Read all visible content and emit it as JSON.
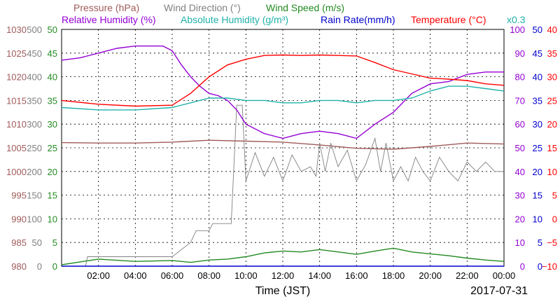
{
  "chart_data": {
    "type": "line",
    "date": "2017-07-31",
    "xlabel": "Time (JST)",
    "x_range": [
      "00:00",
      "24:00"
    ],
    "x_ticks": [
      "02:00",
      "04:00",
      "06:00",
      "08:00",
      "10:00",
      "12:00",
      "14:00",
      "16:00",
      "18:00",
      "20:00",
      "22:00",
      "00:00"
    ],
    "grid": true,
    "legend": {
      "row1": [
        {
          "label": "Pressure (hPa)",
          "color": "#a05a5a"
        },
        {
          "label": "Wind Direction (°)",
          "color": "#808080"
        },
        {
          "label": "Wind Speed (m/s)",
          "color": "#228B22"
        }
      ],
      "row2": [
        {
          "label": "Relative Humidity (%)",
          "color": "#9400d3"
        },
        {
          "label": "Absolute Humidity (g/m³)",
          "color": "#20b2aa"
        },
        {
          "label": "Rain Rate(mm/h)",
          "color": "#0000cd"
        },
        {
          "label": "Temperature (°C)",
          "color": "#ff0000"
        }
      ],
      "rain_multiplier": "x0.3"
    },
    "axes": {
      "pressure": {
        "color": "#a05a5a",
        "range": [
          980,
          1030
        ],
        "ticks": [
          "1030",
          "1025",
          "1020",
          "1015",
          "1010",
          "1005",
          "1000",
          "995",
          "990",
          "985",
          "980"
        ]
      },
      "wind_direction": {
        "color": "#808080",
        "range": [
          0,
          500
        ],
        "ticks": [
          "500",
          "450",
          "400",
          "350",
          "300",
          "250",
          "200",
          "150",
          "100",
          "50",
          "0"
        ]
      },
      "wind_speed": {
        "color": "#228B22",
        "range": [
          0,
          50
        ],
        "ticks": [
          "50",
          "45",
          "40",
          "35",
          "30",
          "25",
          "20",
          "15",
          "10",
          "5",
          "0"
        ]
      },
      "humidity": {
        "color": "#9400d3",
        "range": [
          0,
          100
        ],
        "ticks": [
          "100",
          "90",
          "80",
          "70",
          "60",
          "50",
          "40",
          "30",
          "20",
          "10",
          "0"
        ]
      },
      "rain": {
        "color": "#0000cd",
        "range": [
          0,
          50
        ],
        "ticks": [
          "50",
          "45",
          "40",
          "35",
          "30",
          "25",
          "20",
          "15",
          "10",
          "5",
          "0"
        ]
      },
      "temperature": {
        "color": "#ff0000",
        "range": [
          -10,
          40
        ],
        "ticks": [
          "40",
          "35",
          "30",
          "25",
          "20",
          "15",
          "10",
          "5",
          "0",
          "−5",
          "−10"
        ]
      }
    },
    "series": [
      {
        "name": "Pressure (hPa)",
        "axis": "pressure",
        "color": "#a05a5a",
        "x": [
          0,
          2,
          4,
          6,
          8,
          10,
          12,
          14,
          16,
          18,
          20,
          22,
          24
        ],
        "y": [
          1006.1,
          1006.0,
          1006.0,
          1006.2,
          1006.6,
          1006.4,
          1006.2,
          1005.6,
          1004.9,
          1004.7,
          1005.3,
          1006.0,
          1005.8
        ]
      },
      {
        "name": "Wind Direction (°)",
        "axis": "wind_direction",
        "color": "#808080",
        "x": [
          1.3,
          1.4,
          5.8,
          6.0,
          7.0,
          7.3,
          8.0,
          8.2,
          9.2,
          9.5,
          9.8,
          10.0,
          10.5,
          11.0,
          11.5,
          12.0,
          12.5,
          13.0,
          13.5,
          13.8,
          14.0,
          14.3,
          14.6,
          15.0,
          15.5,
          16.0,
          16.5,
          17.0,
          17.3,
          17.6,
          18.0,
          18.4,
          18.8,
          19.2,
          19.6,
          20.0,
          20.5,
          21.0,
          21.5,
          22.0,
          22.5,
          23.0,
          23.5,
          24.0
        ],
        "y": [
          0,
          20,
          20,
          20,
          50,
          75,
          75,
          90,
          90,
          340,
          340,
          180,
          240,
          190,
          230,
          180,
          235,
          200,
          210,
          190,
          260,
          200,
          260,
          210,
          245,
          180,
          215,
          270,
          200,
          260,
          180,
          210,
          180,
          230,
          200,
          180,
          230,
          200,
          180,
          220,
          200,
          220,
          200,
          200
        ]
      },
      {
        "name": "Wind Speed (m/s)",
        "axis": "wind_speed",
        "color": "#228B22",
        "x": [
          0,
          2,
          4,
          6,
          7,
          8,
          9,
          10,
          11,
          12,
          13,
          14,
          15,
          16,
          17,
          18,
          19,
          20,
          21,
          22,
          23,
          24
        ],
        "y": [
          0.3,
          1.5,
          1.0,
          1.2,
          0.8,
          1.3,
          1.5,
          2.0,
          2.8,
          3.2,
          3.0,
          3.5,
          3.0,
          2.5,
          3.2,
          3.8,
          3.0,
          2.6,
          2.2,
          1.7,
          1.3,
          1.0
        ]
      },
      {
        "name": "Relative Humidity (%)",
        "axis": "humidity",
        "color": "#9400d3",
        "x": [
          0,
          1,
          2,
          3,
          4,
          5,
          5.5,
          6,
          6.5,
          7,
          7.5,
          8,
          8.5,
          9,
          9.5,
          10,
          11,
          12,
          13,
          14,
          15,
          16,
          17,
          18,
          19,
          20,
          21,
          22,
          23,
          24
        ],
        "y": [
          87,
          88,
          90,
          92,
          93,
          93,
          93,
          91,
          85,
          80,
          76,
          73,
          72,
          70,
          66,
          60,
          56,
          54,
          56,
          57,
          56,
          54,
          60,
          65,
          73,
          77,
          78,
          81,
          82,
          82
        ]
      },
      {
        "name": "Absolute Humidity (g/m³)",
        "axis": "humidity",
        "color": "#20b2aa",
        "x": [
          0,
          2,
          4,
          6,
          7,
          8,
          9,
          10,
          11,
          12,
          13,
          14,
          15,
          16,
          17,
          18,
          19,
          20,
          21,
          22,
          23,
          24
        ],
        "y": [
          67,
          66,
          66,
          67,
          69,
          71,
          71,
          70,
          70,
          69,
          69,
          70,
          70,
          69,
          70,
          70,
          71,
          74,
          76,
          76,
          75,
          74
        ]
      },
      {
        "name": "Rain Rate(mm/h)",
        "axis": "rain",
        "color": "#0000cd",
        "x": [
          0,
          24
        ],
        "y": [
          0,
          0
        ]
      },
      {
        "name": "Temperature (°C)",
        "axis": "temperature",
        "color": "#ff0000",
        "x": [
          0,
          2,
          4,
          6,
          7,
          8,
          9,
          10,
          11,
          12,
          13,
          14,
          15,
          16,
          17,
          18,
          19,
          20,
          21,
          22,
          23,
          24
        ],
        "y": [
          25.0,
          24.2,
          23.8,
          24.0,
          26.5,
          30.0,
          32.5,
          33.7,
          34.5,
          34.6,
          34.5,
          34.6,
          34.5,
          34.4,
          33.0,
          31.5,
          30.6,
          29.7,
          29.5,
          29.2,
          28.5,
          28.2
        ]
      }
    ]
  }
}
